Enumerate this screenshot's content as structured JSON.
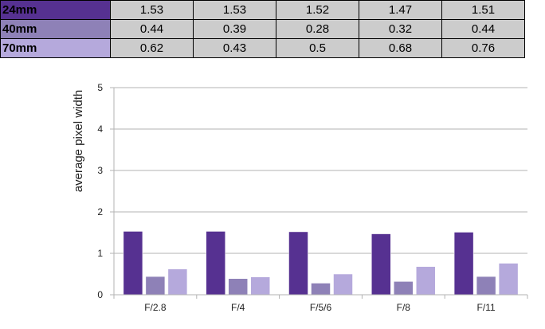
{
  "table": {
    "rows": [
      {
        "label": "24mm",
        "color": "#563191",
        "values": [
          "1.53",
          "1.53",
          "1.52",
          "1.47",
          "1.51"
        ]
      },
      {
        "label": "40mm",
        "color": "#8e81b7",
        "values": [
          "0.44",
          "0.39",
          "0.28",
          "0.32",
          "0.44"
        ]
      },
      {
        "label": "70mm",
        "color": "#b5a9dc",
        "values": [
          "0.62",
          "0.43",
          "0.5",
          "0.68",
          "0.76"
        ]
      }
    ]
  },
  "chart_data": {
    "type": "bar",
    "categories": [
      "F/2.8",
      "F/4",
      "F/5/6",
      "F/8",
      "F/11"
    ],
    "series": [
      {
        "name": "24mm",
        "color": "#563191",
        "values": [
          1.53,
          1.53,
          1.52,
          1.47,
          1.51
        ]
      },
      {
        "name": "40mm",
        "color": "#8e81b7",
        "values": [
          0.44,
          0.39,
          0.28,
          0.32,
          0.44
        ]
      },
      {
        "name": "70mm",
        "color": "#b5a9dc",
        "values": [
          0.62,
          0.43,
          0.5,
          0.68,
          0.76
        ]
      }
    ],
    "ylabel": "average pixel width",
    "xlabel": "",
    "ylim": [
      0,
      5
    ],
    "yticks": [
      "0",
      "1",
      "2",
      "3",
      "4",
      "5"
    ],
    "grid": true,
    "legend": "none"
  }
}
